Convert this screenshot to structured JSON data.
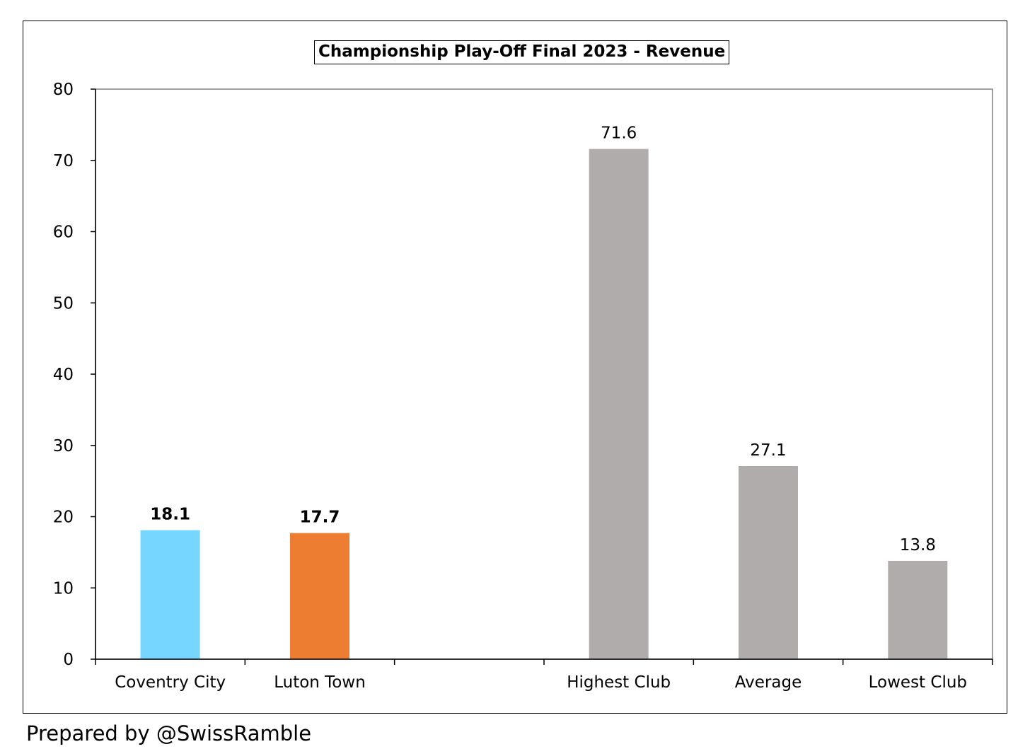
{
  "chart_data": {
    "type": "bar",
    "title": "Championship Play-Off Final 2023 - Revenue",
    "xlabel": "",
    "ylabel": "",
    "ylim": [
      0,
      80
    ],
    "yticks": [
      "0",
      "10",
      "20",
      "30",
      "40",
      "50",
      "60",
      "70",
      "80"
    ],
    "categories": [
      "Coventry City",
      "Luton Town",
      "",
      "Highest Club",
      "Average",
      "Lowest Club"
    ],
    "values": [
      18.1,
      17.7,
      null,
      71.6,
      27.1,
      13.8
    ],
    "value_labels": [
      "18.1",
      "17.7",
      "",
      "71.6",
      "27.1",
      "13.8"
    ],
    "bar_colors": [
      "#76d6ff",
      "#ed7d31",
      "",
      "#b0acac",
      "#b0acac",
      "#b0acac"
    ],
    "bold_labels": [
      true,
      true,
      false,
      false,
      false,
      false
    ],
    "grid": false,
    "legend": "none"
  },
  "footer": {
    "credit": "Prepared by @SwissRamble"
  }
}
